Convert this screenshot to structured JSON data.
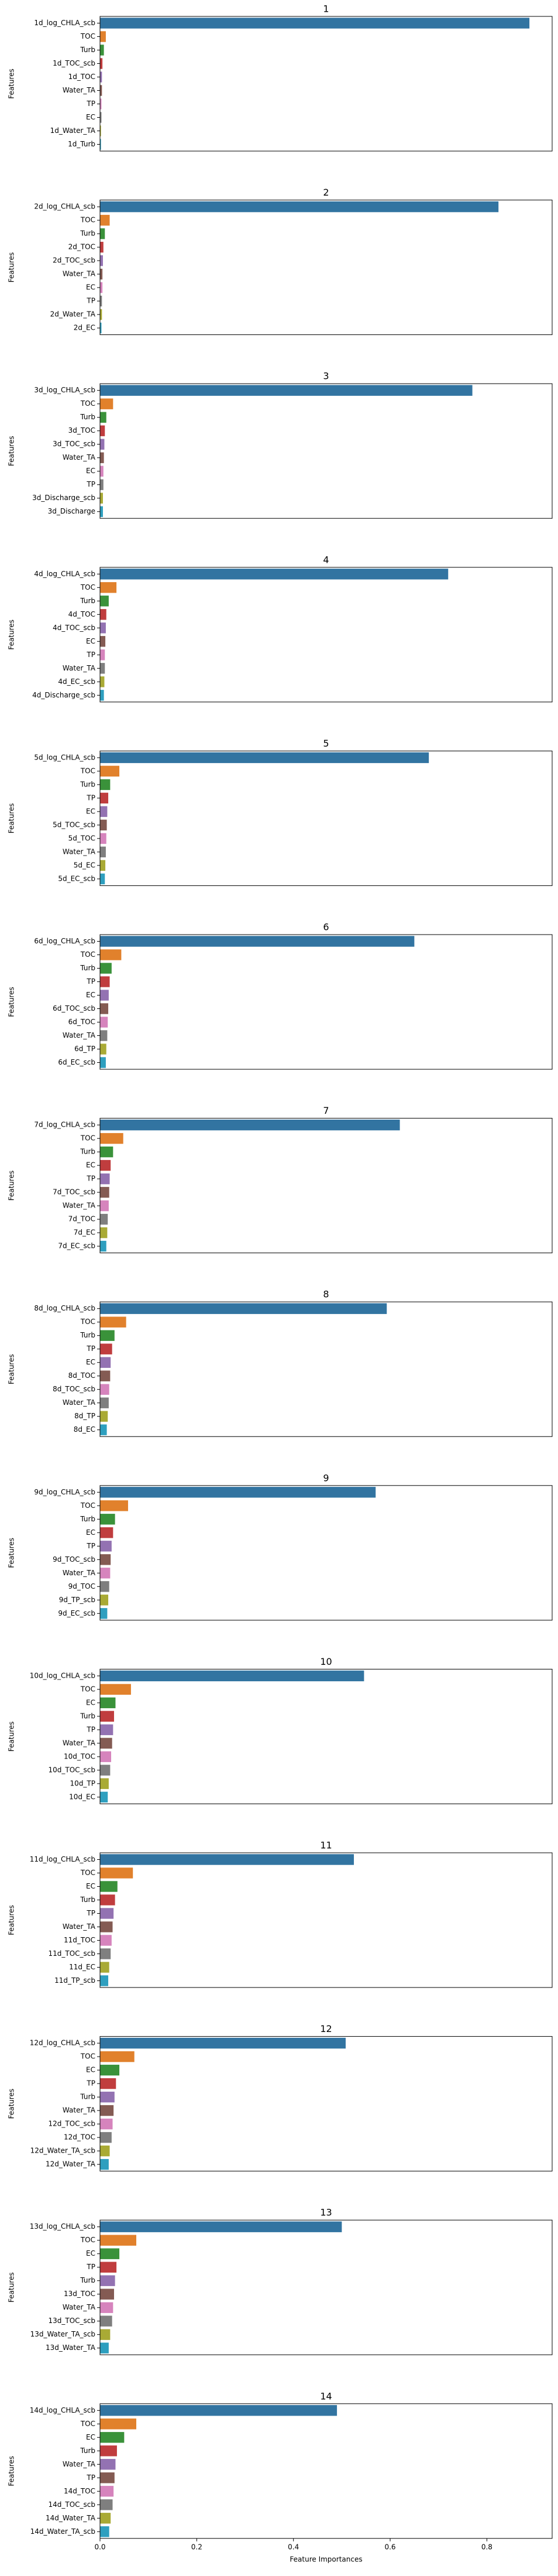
{
  "chart_data": [
    {
      "type": "bar",
      "orientation": "horizontal",
      "title": "1",
      "ylabel": "Features",
      "xlim": [
        0,
        0.935
      ],
      "categories": [
        "1d_log_CHLA_scb",
        "TOC",
        "Turb",
        "1d_TOC_scb",
        "1d_TOC",
        "Water_TA",
        "TP",
        "EC",
        "1d_Water_TA",
        "1d_Turb"
      ],
      "values": [
        0.888,
        0.012,
        0.008,
        0.005,
        0.004,
        0.004,
        0.003,
        0.003,
        0.002,
        0.002
      ],
      "colors": [
        "#3274a1",
        "#e1812c",
        "#3a923a",
        "#c03d3e",
        "#9372b2",
        "#845b53",
        "#d684bd",
        "#7f7f7f",
        "#a9aa35",
        "#2e9fbf"
      ]
    },
    {
      "type": "bar",
      "orientation": "horizontal",
      "title": "2",
      "ylabel": "Features",
      "xlim": [
        0,
        0.935
      ],
      "categories": [
        "2d_log_CHLA_scb",
        "TOC",
        "Turb",
        "2d_TOC",
        "2d_TOC_scb",
        "Water_TA",
        "EC",
        "TP",
        "2d_Water_TA",
        "2d_EC"
      ],
      "values": [
        0.824,
        0.02,
        0.01,
        0.007,
        0.006,
        0.005,
        0.005,
        0.004,
        0.004,
        0.003
      ],
      "colors": [
        "#3274a1",
        "#e1812c",
        "#3a923a",
        "#c03d3e",
        "#9372b2",
        "#845b53",
        "#d684bd",
        "#7f7f7f",
        "#a9aa35",
        "#2e9fbf"
      ]
    },
    {
      "type": "bar",
      "orientation": "horizontal",
      "title": "3",
      "ylabel": "Features",
      "xlim": [
        0,
        0.935
      ],
      "categories": [
        "3d_log_CHLA_scb",
        "TOC",
        "Turb",
        "3d_TOC",
        "3d_TOC_scb",
        "Water_TA",
        "EC",
        "TP",
        "3d_Discharge_scb",
        "3d_Discharge"
      ],
      "values": [
        0.77,
        0.027,
        0.013,
        0.01,
        0.009,
        0.008,
        0.007,
        0.007,
        0.006,
        0.006
      ],
      "colors": [
        "#3274a1",
        "#e1812c",
        "#3a923a",
        "#c03d3e",
        "#9372b2",
        "#845b53",
        "#d684bd",
        "#7f7f7f",
        "#a9aa35",
        "#2e9fbf"
      ]
    },
    {
      "type": "bar",
      "orientation": "horizontal",
      "title": "4",
      "ylabel": "Features",
      "xlim": [
        0,
        0.935
      ],
      "categories": [
        "4d_log_CHLA_scb",
        "TOC",
        "Turb",
        "4d_TOC",
        "4d_TOC_scb",
        "EC",
        "TP",
        "Water_TA",
        "4d_EC_scb",
        "4d_Discharge_scb"
      ],
      "values": [
        0.72,
        0.034,
        0.018,
        0.013,
        0.012,
        0.011,
        0.01,
        0.01,
        0.009,
        0.008
      ],
      "colors": [
        "#3274a1",
        "#e1812c",
        "#3a923a",
        "#c03d3e",
        "#9372b2",
        "#845b53",
        "#d684bd",
        "#7f7f7f",
        "#a9aa35",
        "#2e9fbf"
      ]
    },
    {
      "type": "bar",
      "orientation": "horizontal",
      "title": "5",
      "ylabel": "Features",
      "xlim": [
        0,
        0.935
      ],
      "categories": [
        "5d_log_CHLA_scb",
        "TOC",
        "Turb",
        "TP",
        "EC",
        "5d_TOC_scb",
        "5d_TOC",
        "Water_TA",
        "5d_EC",
        "5d_EC_scb"
      ],
      "values": [
        0.68,
        0.04,
        0.021,
        0.017,
        0.015,
        0.014,
        0.013,
        0.012,
        0.011,
        0.01
      ],
      "colors": [
        "#3274a1",
        "#e1812c",
        "#3a923a",
        "#c03d3e",
        "#9372b2",
        "#845b53",
        "#d684bd",
        "#7f7f7f",
        "#a9aa35",
        "#2e9fbf"
      ]
    },
    {
      "type": "bar",
      "orientation": "horizontal",
      "title": "6",
      "ylabel": "Features",
      "xlim": [
        0,
        0.935
      ],
      "categories": [
        "6d_log_CHLA_scb",
        "TOC",
        "Turb",
        "TP",
        "EC",
        "6d_TOC_scb",
        "6d_TOC",
        "Water_TA",
        "6d_TP",
        "6d_EC_scb"
      ],
      "values": [
        0.65,
        0.044,
        0.024,
        0.02,
        0.018,
        0.017,
        0.016,
        0.015,
        0.013,
        0.012
      ],
      "colors": [
        "#3274a1",
        "#e1812c",
        "#3a923a",
        "#c03d3e",
        "#9372b2",
        "#845b53",
        "#d684bd",
        "#7f7f7f",
        "#a9aa35",
        "#2e9fbf"
      ]
    },
    {
      "type": "bar",
      "orientation": "horizontal",
      "title": "7",
      "ylabel": "Features",
      "xlim": [
        0,
        0.935
      ],
      "categories": [
        "7d_log_CHLA_scb",
        "TOC",
        "Turb",
        "EC",
        "TP",
        "7d_TOC_scb",
        "Water_TA",
        "7d_TOC",
        "7d_EC",
        "7d_EC_scb"
      ],
      "values": [
        0.62,
        0.048,
        0.027,
        0.022,
        0.02,
        0.019,
        0.018,
        0.016,
        0.015,
        0.013
      ],
      "colors": [
        "#3274a1",
        "#e1812c",
        "#3a923a",
        "#c03d3e",
        "#9372b2",
        "#845b53",
        "#d684bd",
        "#7f7f7f",
        "#a9aa35",
        "#2e9fbf"
      ]
    },
    {
      "type": "bar",
      "orientation": "horizontal",
      "title": "8",
      "ylabel": "Features",
      "xlim": [
        0,
        0.935
      ],
      "categories": [
        "8d_log_CHLA_scb",
        "TOC",
        "Turb",
        "TP",
        "EC",
        "8d_TOC",
        "8d_TOC_scb",
        "Water_TA",
        "8d_TP",
        "8d_EC"
      ],
      "values": [
        0.593,
        0.054,
        0.03,
        0.025,
        0.022,
        0.021,
        0.019,
        0.018,
        0.016,
        0.014
      ],
      "colors": [
        "#3274a1",
        "#e1812c",
        "#3a923a",
        "#c03d3e",
        "#9372b2",
        "#845b53",
        "#d684bd",
        "#7f7f7f",
        "#a9aa35",
        "#2e9fbf"
      ]
    },
    {
      "type": "bar",
      "orientation": "horizontal",
      "title": "9",
      "ylabel": "Features",
      "xlim": [
        0,
        0.935
      ],
      "categories": [
        "9d_log_CHLA_scb",
        "TOC",
        "Turb",
        "EC",
        "TP",
        "9d_TOC_scb",
        "Water_TA",
        "9d_TOC",
        "9d_TP_scb",
        "9d_EC_scb"
      ],
      "values": [
        0.57,
        0.058,
        0.031,
        0.027,
        0.024,
        0.022,
        0.021,
        0.019,
        0.017,
        0.015
      ],
      "colors": [
        "#3274a1",
        "#e1812c",
        "#3a923a",
        "#c03d3e",
        "#9372b2",
        "#845b53",
        "#d684bd",
        "#7f7f7f",
        "#a9aa35",
        "#2e9fbf"
      ]
    },
    {
      "type": "bar",
      "orientation": "horizontal",
      "title": "10",
      "ylabel": "Features",
      "xlim": [
        0,
        0.935
      ],
      "categories": [
        "10d_log_CHLA_scb",
        "TOC",
        "EC",
        "Turb",
        "TP",
        "Water_TA",
        "10d_TOC",
        "10d_TOC_scb",
        "10d_TP",
        "10d_EC"
      ],
      "values": [
        0.546,
        0.064,
        0.032,
        0.029,
        0.027,
        0.025,
        0.023,
        0.021,
        0.018,
        0.016
      ],
      "colors": [
        "#3274a1",
        "#e1812c",
        "#3a923a",
        "#c03d3e",
        "#9372b2",
        "#845b53",
        "#d684bd",
        "#7f7f7f",
        "#a9aa35",
        "#2e9fbf"
      ]
    },
    {
      "type": "bar",
      "orientation": "horizontal",
      "title": "11",
      "ylabel": "Features",
      "xlim": [
        0,
        0.935
      ],
      "categories": [
        "11d_log_CHLA_scb",
        "TOC",
        "EC",
        "Turb",
        "TP",
        "Water_TA",
        "11d_TOC",
        "11d_TOC_scb",
        "11d_EC",
        "11d_TP_scb"
      ],
      "values": [
        0.525,
        0.068,
        0.036,
        0.031,
        0.028,
        0.026,
        0.024,
        0.022,
        0.019,
        0.017
      ],
      "colors": [
        "#3274a1",
        "#e1812c",
        "#3a923a",
        "#c03d3e",
        "#9372b2",
        "#845b53",
        "#d684bd",
        "#7f7f7f",
        "#a9aa35",
        "#2e9fbf"
      ]
    },
    {
      "type": "bar",
      "orientation": "horizontal",
      "title": "12",
      "ylabel": "Features",
      "xlim": [
        0,
        0.935
      ],
      "categories": [
        "12d_log_CHLA_scb",
        "TOC",
        "EC",
        "TP",
        "Turb",
        "Water_TA",
        "12d_TOC_scb",
        "12d_TOC",
        "12d_Water_TA_scb",
        "12d_Water_TA"
      ],
      "values": [
        0.508,
        0.071,
        0.04,
        0.033,
        0.03,
        0.028,
        0.026,
        0.024,
        0.02,
        0.018
      ],
      "colors": [
        "#3274a1",
        "#e1812c",
        "#3a923a",
        "#c03d3e",
        "#9372b2",
        "#845b53",
        "#d684bd",
        "#7f7f7f",
        "#a9aa35",
        "#2e9fbf"
      ]
    },
    {
      "type": "bar",
      "orientation": "horizontal",
      "title": "13",
      "ylabel": "Features",
      "xlim": [
        0,
        0.935
      ],
      "categories": [
        "13d_log_CHLA_scb",
        "TOC",
        "EC",
        "TP",
        "Turb",
        "13d_TOC",
        "Water_TA",
        "13d_TOC_scb",
        "13d_Water_TA_scb",
        "13d_Water_TA"
      ],
      "values": [
        0.5,
        0.075,
        0.04,
        0.034,
        0.031,
        0.029,
        0.027,
        0.025,
        0.021,
        0.018
      ],
      "colors": [
        "#3274a1",
        "#e1812c",
        "#3a923a",
        "#c03d3e",
        "#9372b2",
        "#845b53",
        "#d684bd",
        "#7f7f7f",
        "#a9aa35",
        "#2e9fbf"
      ]
    },
    {
      "type": "bar",
      "orientation": "horizontal",
      "title": "14",
      "ylabel": "Features",
      "xlabel": "Feature Importances",
      "xlim": [
        0,
        0.935
      ],
      "xticks": [
        {
          "value": 0,
          "label": "0.0"
        },
        0.2,
        0.4,
        0.6,
        0.8
      ],
      "categories": [
        "14d_log_CHLA_scb",
        "TOC",
        "EC",
        "Turb",
        "Water_TA",
        "TP",
        "14d_TOC",
        "14d_TOC_scb",
        "14d_Water_TA",
        "14d_Water_TA_scb"
      ],
      "values": [
        0.49,
        0.075,
        0.05,
        0.035,
        0.032,
        0.03,
        0.028,
        0.026,
        0.022,
        0.019
      ],
      "colors": [
        "#3274a1",
        "#e1812c",
        "#3a923a",
        "#c03d3e",
        "#9372b2",
        "#845b53",
        "#d684bd",
        "#7f7f7f",
        "#a9aa35",
        "#2e9fbf"
      ]
    }
  ]
}
